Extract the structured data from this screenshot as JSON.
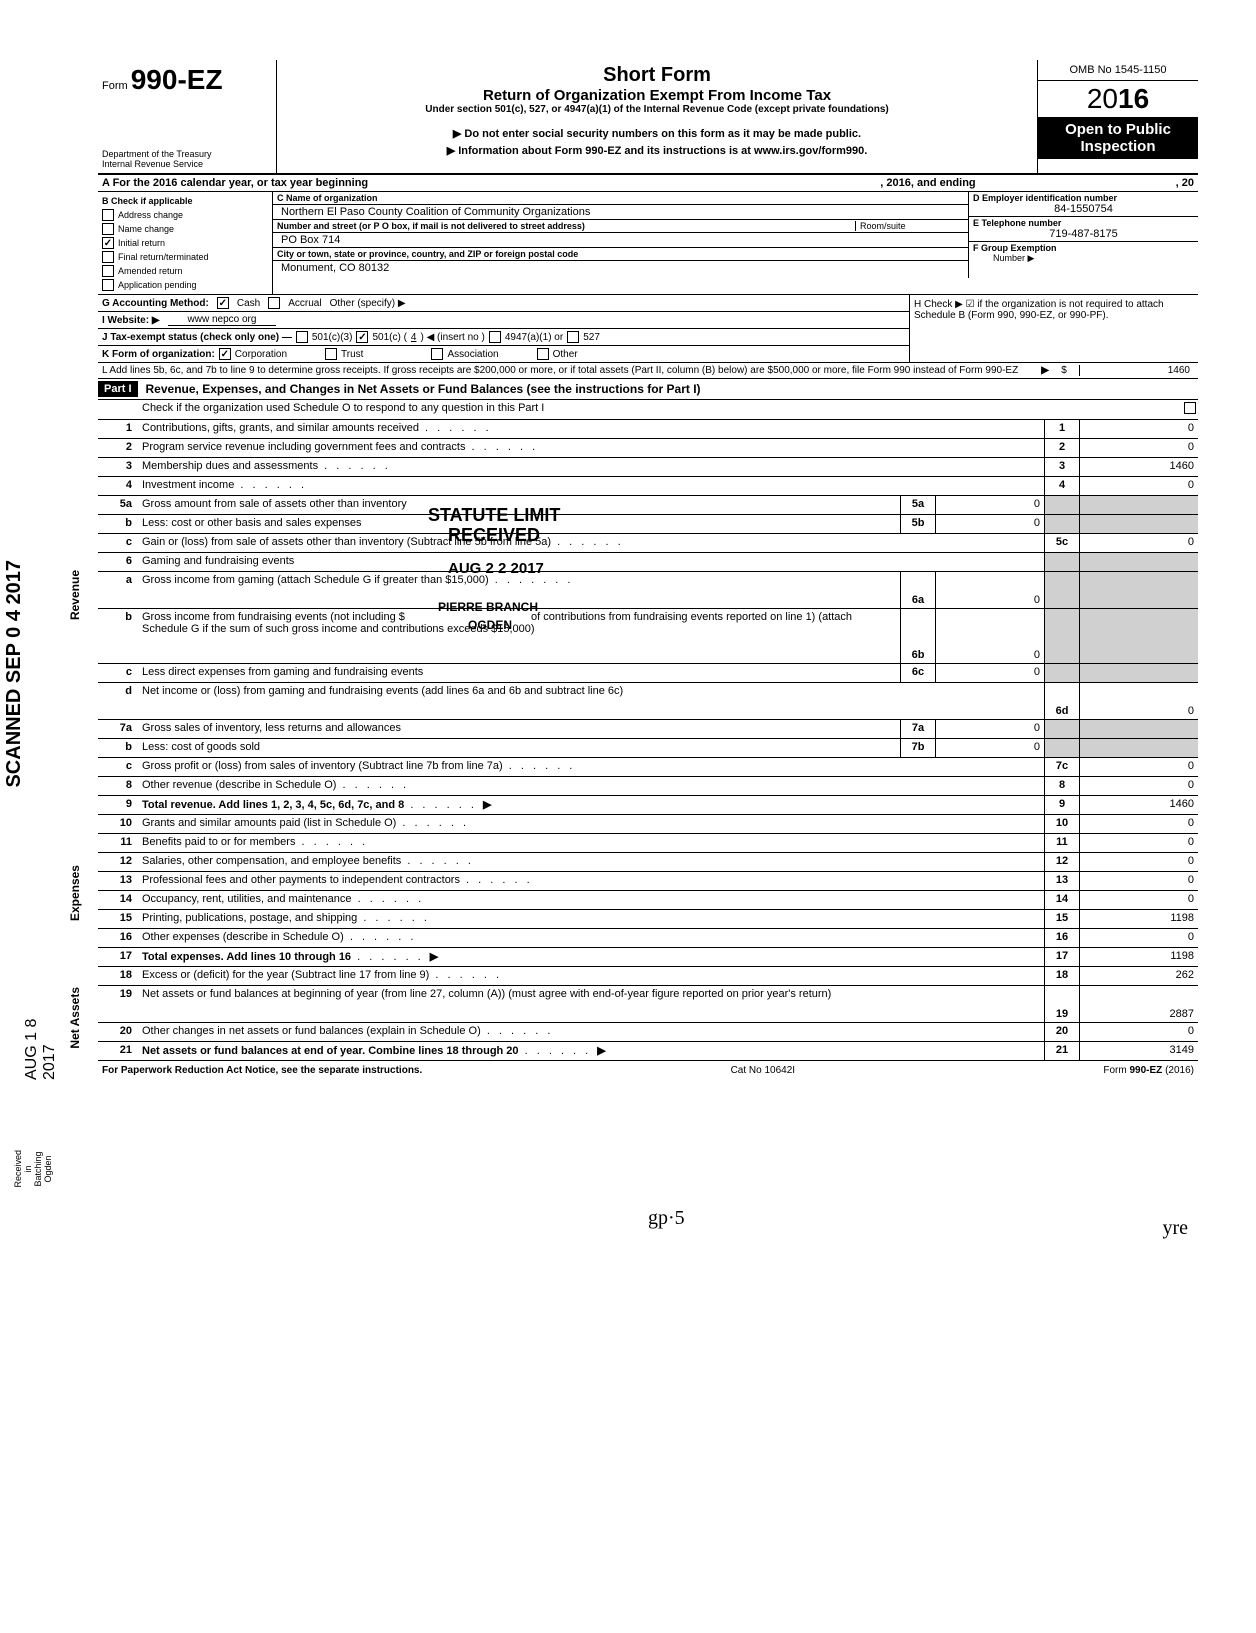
{
  "header": {
    "form_prefix": "Form",
    "form_number": "990-EZ",
    "title": "Short Form",
    "subtitle": "Return of Organization Exempt From Income Tax",
    "under": "Under section 501(c), 527, or 4947(a)(1) of the Internal Revenue Code (except private foundations)",
    "instr1": "▶ Do not enter social security numbers on this form as it may be made public.",
    "instr2": "▶ Information about Form 990-EZ and its instructions is at www.irs.gov/form990.",
    "omb": "OMB No 1545-1150",
    "year_prefix": "20",
    "year_bold": "16",
    "open": "Open to Public Inspection",
    "dept1": "Department of the Treasury",
    "dept2": "Internal Revenue Service"
  },
  "lineA": "A For the 2016 calendar year, or tax year beginning",
  "lineA_mid": ", 2016, and ending",
  "lineA_end": ", 20",
  "sectionB": {
    "label": "B Check if applicable",
    "items": [
      "Address change",
      "Name change",
      "Initial return",
      "Final return/terminated",
      "Amended return",
      "Application pending"
    ],
    "checked_index": 2
  },
  "sectionC": {
    "name_label": "C Name of organization",
    "name": "Northern El Paso County Coalition of Community Organizations",
    "addr_label": "Number and street (or P O  box, if mail is not delivered to street address)",
    "room_label": "Room/suite",
    "addr": "PO Box 714",
    "city_label": "City or town, state or province, country, and ZIP or foreign postal code",
    "city": "Monument, CO 80132"
  },
  "sectionD": {
    "label": "D Employer identification number",
    "value": "84-1550754"
  },
  "sectionE": {
    "label": "E Telephone number",
    "value": "719-487-8175"
  },
  "sectionF": {
    "label": "F Group Exemption",
    "label2": "Number ▶"
  },
  "lineG": {
    "label": "G  Accounting Method:",
    "cash": "Cash",
    "accrual": "Accrual",
    "other": "Other (specify) ▶"
  },
  "lineH": "H  Check ▶ ☑ if the organization is not required to attach Schedule B (Form 990, 990-EZ, or 990-PF).",
  "lineI": {
    "label": "I   Website: ▶",
    "value": "www nepco org"
  },
  "lineJ": {
    "label": "J  Tax-exempt status (check only one) —",
    "c3": "501(c)(3)",
    "c": "501(c) (",
    "cnum": "4",
    "cend": ") ◀ (insert no )",
    "a1": "4947(a)(1) or",
    "s527": "527"
  },
  "lineK": {
    "label": "K  Form of organization:",
    "corp": "Corporation",
    "trust": "Trust",
    "assoc": "Association",
    "other": "Other"
  },
  "lineL": "L  Add lines 5b, 6c, and 7b to line 9 to determine gross receipts. If gross receipts are $200,000 or more, or if total assets (Part II, column (B) below) are $500,000 or more, file Form 990 instead of Form 990-EZ",
  "lineL_arrow": "▶",
  "lineL_dollar": "$",
  "lineL_val": "1460",
  "part1": {
    "label": "Part I",
    "title": "Revenue, Expenses, and Changes in Net Assets or Fund Balances (see the instructions for Part I)",
    "check_line": "Check if the organization used Schedule O to respond to any question in this Part I"
  },
  "revenue_rows": [
    {
      "num": "1",
      "desc": "Contributions, gifts, grants, and similar amounts received",
      "rlabel": "1",
      "rval": "0"
    },
    {
      "num": "2",
      "desc": "Program service revenue including government fees and contracts",
      "rlabel": "2",
      "rval": "0"
    },
    {
      "num": "3",
      "desc": "Membership dues and assessments",
      "rlabel": "3",
      "rval": "1460"
    },
    {
      "num": "4",
      "desc": "Investment income",
      "rlabel": "4",
      "rval": "0"
    }
  ],
  "row5a": {
    "num": "5a",
    "desc": "Gross amount from sale of assets other than inventory",
    "slabel": "5a",
    "sval": "0"
  },
  "row5b": {
    "num": "b",
    "desc": "Less: cost or other basis and sales expenses",
    "slabel": "5b",
    "sval": "0"
  },
  "row5c": {
    "num": "c",
    "desc": "Gain or (loss) from sale of assets other than inventory (Subtract line 5b from line 5a)",
    "rlabel": "5c",
    "rval": "0"
  },
  "row6": {
    "num": "6",
    "desc": "Gaming and fundraising events"
  },
  "row6a": {
    "num": "a",
    "desc": "Gross income from gaming (attach Schedule G if greater than $15,000)",
    "slabel": "6a",
    "sval": "0"
  },
  "row6b": {
    "num": "b",
    "desc": "Gross income from fundraising events (not including $",
    "desc2": "of contributions from fundraising events reported on line 1) (attach Schedule G if the sum of such gross income and contributions exceeds $15,000)",
    "slabel": "6b",
    "sval": "0"
  },
  "row6c": {
    "num": "c",
    "desc": "Less  direct expenses from gaming and fundraising events",
    "slabel": "6c",
    "sval": "0"
  },
  "row6d": {
    "num": "d",
    "desc": "Net income or (loss) from gaming and fundraising events (add lines 6a and 6b and subtract line 6c)",
    "rlabel": "6d",
    "rval": "0"
  },
  "row7a": {
    "num": "7a",
    "desc": "Gross sales of inventory, less returns and allowances",
    "slabel": "7a",
    "sval": "0"
  },
  "row7b": {
    "num": "b",
    "desc": "Less: cost of goods sold",
    "slabel": "7b",
    "sval": "0"
  },
  "row7c": {
    "num": "c",
    "desc": "Gross profit or (loss) from sales of inventory (Subtract line 7b from line 7a)",
    "rlabel": "7c",
    "rval": "0"
  },
  "row8": {
    "num": "8",
    "desc": "Other revenue (describe in Schedule O)",
    "rlabel": "8",
    "rval": "0"
  },
  "row9": {
    "num": "9",
    "desc": "Total revenue. Add lines 1, 2, 3, 4, 5c, 6d, 7c, and 8",
    "rlabel": "9",
    "rval": "1460"
  },
  "expense_rows": [
    {
      "num": "10",
      "desc": "Grants and similar amounts paid (list in Schedule O)",
      "rlabel": "10",
      "rval": "0"
    },
    {
      "num": "11",
      "desc": "Benefits paid to or for members",
      "rlabel": "11",
      "rval": "0"
    },
    {
      "num": "12",
      "desc": "Salaries, other compensation, and employee benefits",
      "rlabel": "12",
      "rval": "0"
    },
    {
      "num": "13",
      "desc": "Professional fees and other payments to independent contractors",
      "rlabel": "13",
      "rval": "0"
    },
    {
      "num": "14",
      "desc": "Occupancy, rent, utilities, and maintenance",
      "rlabel": "14",
      "rval": "0"
    },
    {
      "num": "15",
      "desc": "Printing, publications, postage, and shipping",
      "rlabel": "15",
      "rval": "1198"
    },
    {
      "num": "16",
      "desc": "Other expenses (describe in Schedule O)",
      "rlabel": "16",
      "rval": "0"
    },
    {
      "num": "17",
      "desc": "Total expenses. Add lines 10 through 16",
      "rlabel": "17",
      "rval": "1198"
    }
  ],
  "netasset_rows": [
    {
      "num": "18",
      "desc": "Excess or (deficit) for the year (Subtract line 17 from line 9)",
      "rlabel": "18",
      "rval": "262"
    },
    {
      "num": "19",
      "desc": "Net assets or fund balances at beginning of year (from line 27, column (A)) (must agree with end-of-year figure reported on prior year's return)",
      "rlabel": "19",
      "rval": "2887"
    },
    {
      "num": "20",
      "desc": "Other changes in net assets or fund balances (explain in Schedule O)",
      "rlabel": "20",
      "rval": "0"
    },
    {
      "num": "21",
      "desc": "Net assets or fund balances at end of year. Combine lines 18 through 20",
      "rlabel": "21",
      "rval": "3149"
    }
  ],
  "footer": {
    "left": "For Paperwork Reduction Act Notice, see the separate instructions.",
    "mid": "Cat  No  10642I",
    "right": "Form 990-EZ (2016)"
  },
  "vlabels": {
    "revenue": "Revenue",
    "expenses": "Expenses",
    "netassets": "Net Assets"
  },
  "stamps": {
    "scanned": "SCANNED SEP 0 4 2017",
    "aug18": "AUG 1 8 2017",
    "received": "Received in Batching Ogden",
    "statute": "STATUTE LIMIT",
    "received2": "RECEIVED",
    "aug22": "AUG 2 2 2017",
    "branch": "PIERRE BRANCH",
    "ogden": "OGDEN"
  },
  "handwritten": {
    "gp5": "gp·5",
    "yre": "yre"
  }
}
